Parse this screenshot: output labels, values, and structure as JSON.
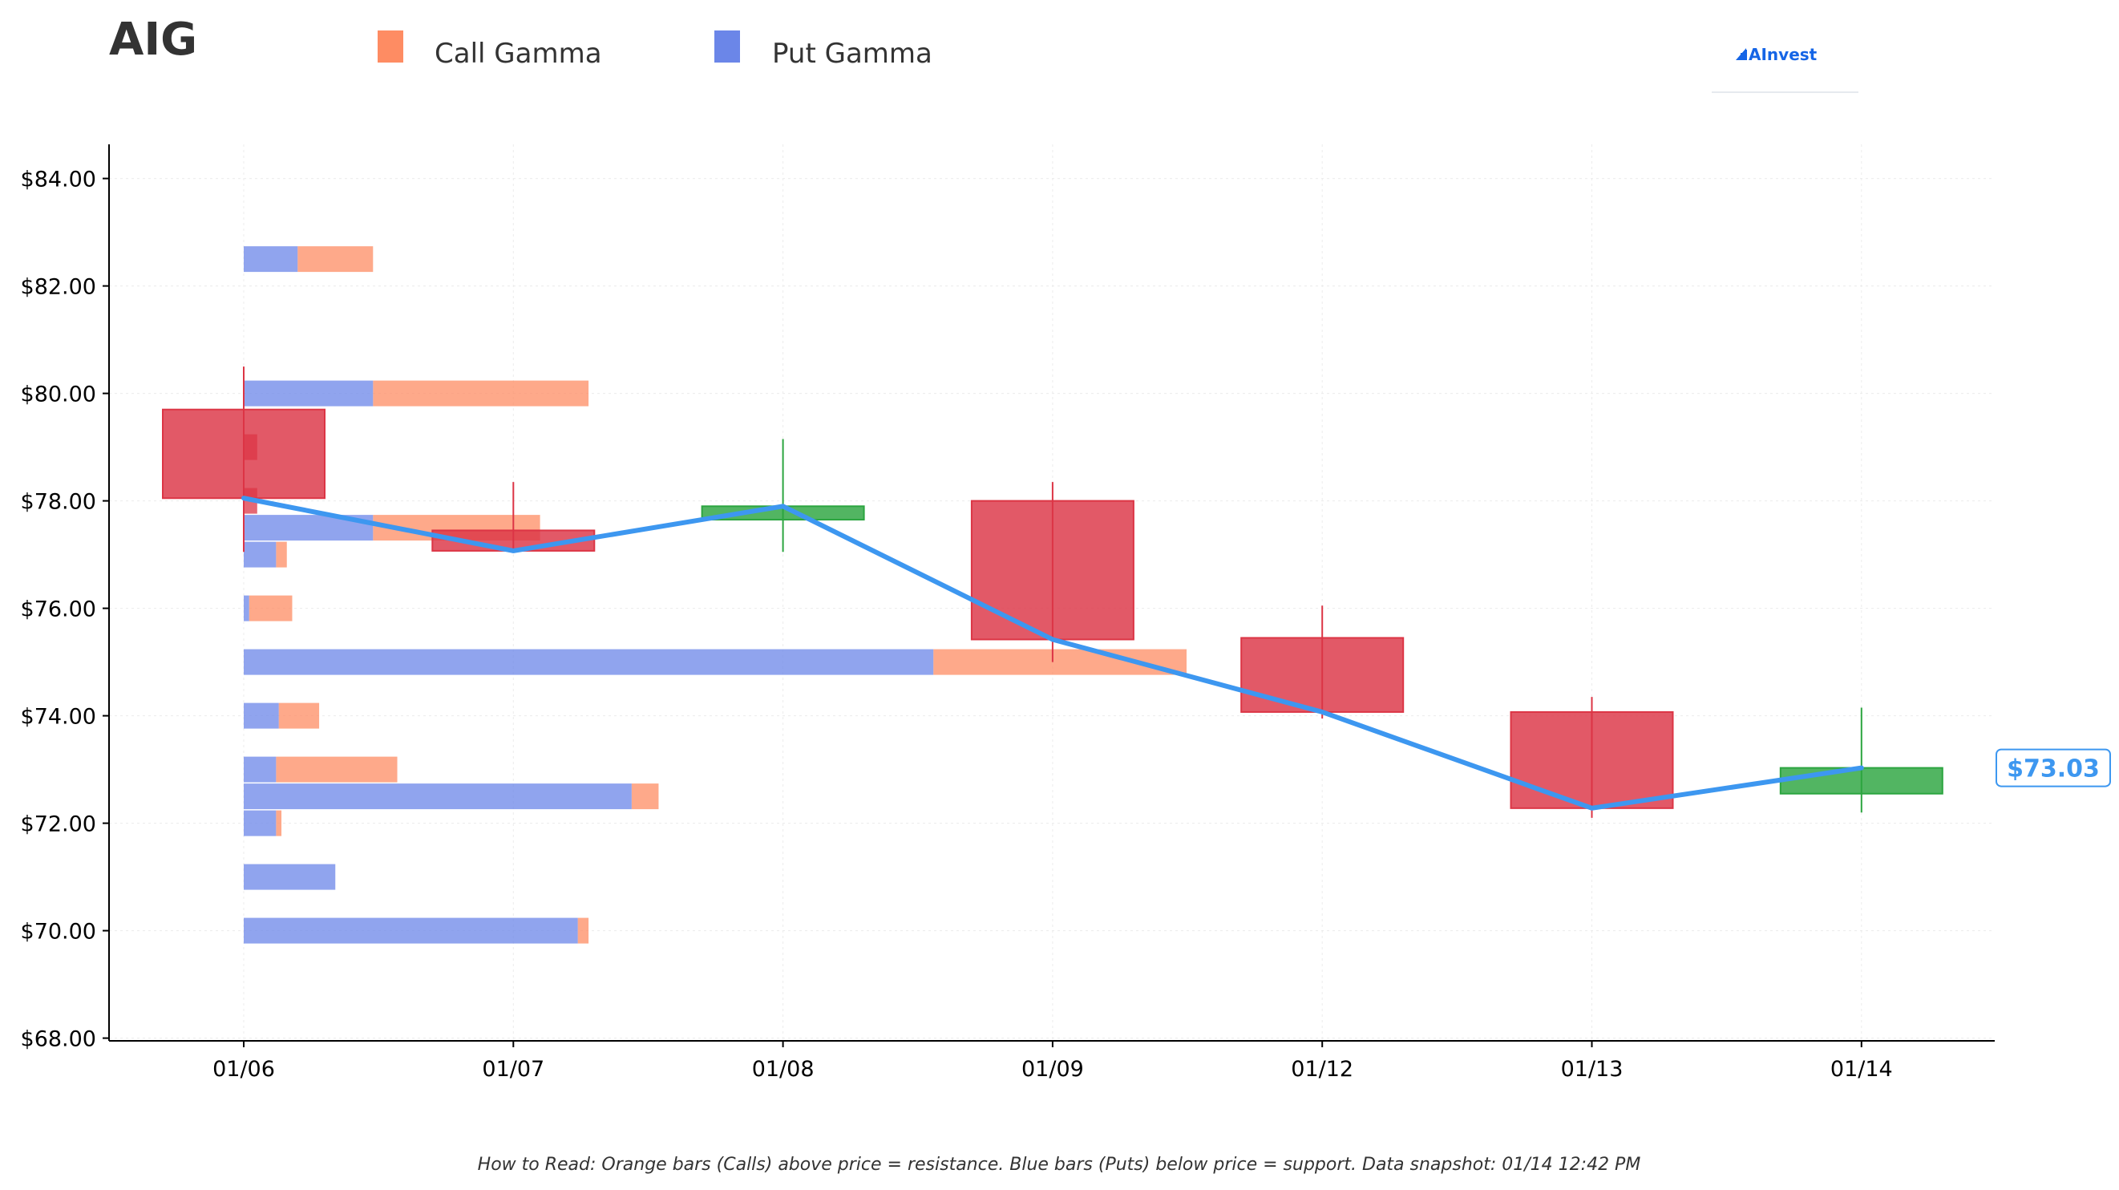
{
  "ticker": "AIG",
  "brand": {
    "name": "AInvest",
    "color": "#1565e6"
  },
  "colors": {
    "call": "#fe8c63",
    "put": "#6b86e8",
    "up": "#2ca540",
    "down": "#dc3545",
    "price_line": "#3d97f0",
    "grid": "#ececec"
  },
  "footnote": "How to Read: Orange bars (Calls) above price = resistance. Blue bars (Puts) below price = support. Data snapshot: 01/14 12:42 PM",
  "chart_data": {
    "type": "candlestick",
    "legend": [
      {
        "label": "Call Gamma",
        "color": "#fe8c63"
      },
      {
        "label": "Put Gamma",
        "color": "#6b86e8"
      }
    ],
    "legend_position": "top",
    "grid": true,
    "ylim": [
      68,
      84.6
    ],
    "y_ticks": [
      68,
      70,
      72,
      74,
      76,
      78,
      80,
      82,
      84
    ],
    "y_tick_labels": [
      "$68.00",
      "$70.00",
      "$72.00",
      "$74.00",
      "$76.00",
      "$78.00",
      "$80.00",
      "$82.00",
      "$84.00"
    ],
    "dates": [
      "01/06",
      "01/07",
      "01/08",
      "01/09",
      "01/12",
      "01/13",
      "01/14"
    ],
    "candles": [
      {
        "date": "01/06",
        "open": 79.7,
        "close": 78.05,
        "high": 80.5,
        "low": 77.05
      },
      {
        "date": "01/07",
        "open": 77.45,
        "close": 77.07,
        "high": 78.35,
        "low": 77.07
      },
      {
        "date": "01/08",
        "open": 77.65,
        "close": 77.9,
        "high": 79.15,
        "low": 77.05
      },
      {
        "date": "01/09",
        "open": 78.0,
        "close": 75.42,
        "high": 78.35,
        "low": 75.0
      },
      {
        "date": "01/12",
        "open": 75.45,
        "close": 74.07,
        "high": 76.05,
        "low": 73.95
      },
      {
        "date": "01/13",
        "open": 74.07,
        "close": 72.28,
        "high": 74.35,
        "low": 72.1
      },
      {
        "date": "01/14",
        "open": 72.55,
        "close": 73.03,
        "high": 74.15,
        "low": 72.2
      }
    ],
    "price_line": [
      78.05,
      77.07,
      77.9,
      75.42,
      74.07,
      72.28,
      73.03
    ],
    "last_price_label": "$73.03",
    "gamma_bars": [
      {
        "strike": 82.5,
        "put": 0.2,
        "total": 0.48
      },
      {
        "strike": 80.0,
        "put": 0.48,
        "total": 1.28
      },
      {
        "strike": 79.0,
        "put": 0.0,
        "total": 0.05,
        "style": "down"
      },
      {
        "strike": 78.0,
        "put": 0.0,
        "total": 0.05,
        "style": "down"
      },
      {
        "strike": 77.5,
        "put": 0.48,
        "total": 1.1
      },
      {
        "strike": 77.0,
        "put": 0.12,
        "total": 0.16
      },
      {
        "strike": 76.0,
        "put": 0.02,
        "total": 0.18
      },
      {
        "strike": 75.0,
        "put": 2.56,
        "total": 3.5
      },
      {
        "strike": 74.0,
        "put": 0.13,
        "total": 0.28
      },
      {
        "strike": 73.0,
        "put": 0.12,
        "total": 0.57
      },
      {
        "strike": 72.5,
        "put": 1.44,
        "total": 1.54
      },
      {
        "strike": 72.0,
        "put": 0.12,
        "total": 0.14
      },
      {
        "strike": 71.0,
        "put": 0.34,
        "total": 0.34
      },
      {
        "strike": 70.0,
        "put": 1.24,
        "total": 1.28
      }
    ]
  }
}
